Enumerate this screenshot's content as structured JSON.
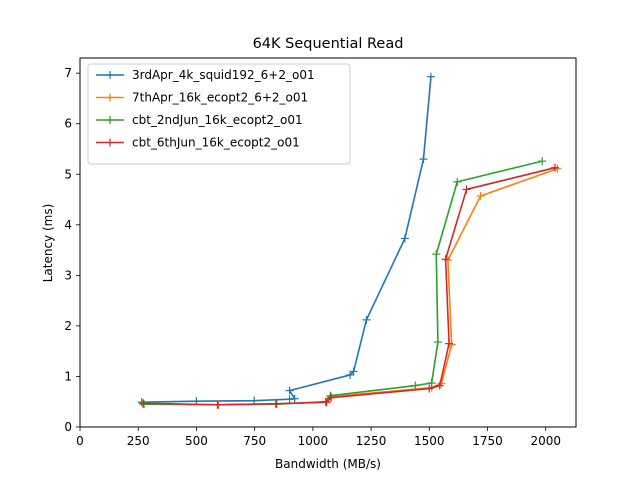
{
  "chart_data": {
    "type": "line",
    "title": "64K  Sequential Read",
    "xlabel": "Bandwidth (MB/s)",
    "ylabel": "Latency (ms)",
    "xlim": [
      0,
      2130
    ],
    "ylim": [
      0,
      7.3
    ],
    "xticks": [
      0,
      250,
      500,
      750,
      1000,
      1250,
      1500,
      1750,
      2000
    ],
    "yticks": [
      0,
      1,
      2,
      3,
      4,
      5,
      6,
      7
    ],
    "grid": false,
    "legend_position": "top-left",
    "series": [
      {
        "name": "3rdApr_4k_squid192_6+2_o01",
        "color": "#1f77b4",
        "points": [
          [
            265,
            0.49
          ],
          [
            500,
            0.51
          ],
          [
            748,
            0.52
          ],
          [
            900,
            0.55
          ],
          [
            922,
            0.56
          ],
          [
            900,
            0.72
          ],
          [
            1160,
            1.03
          ],
          [
            1175,
            1.1
          ],
          [
            1230,
            2.12
          ],
          [
            1395,
            3.73
          ],
          [
            1475,
            5.3
          ],
          [
            1507,
            6.93
          ]
        ]
      },
      {
        "name": "7thApr_16k_ecopt2_6+2_o01",
        "color": "#ff7f0e",
        "points": [
          [
            270,
            0.46
          ],
          [
            595,
            0.44
          ],
          [
            840,
            0.46
          ],
          [
            1060,
            0.49
          ],
          [
            1080,
            0.6
          ],
          [
            1510,
            0.78
          ],
          [
            1552,
            0.86
          ],
          [
            1596,
            1.63
          ],
          [
            1580,
            3.3
          ],
          [
            1720,
            4.57
          ],
          [
            2050,
            5.11
          ]
        ]
      },
      {
        "name": "cbt_2ndJun_16k_ecopt2_o01",
        "color": "#2ca02c",
        "points": [
          [
            275,
            0.45
          ],
          [
            590,
            0.44
          ],
          [
            845,
            0.45
          ],
          [
            1055,
            0.5
          ],
          [
            1075,
            0.62
          ],
          [
            1440,
            0.82
          ],
          [
            1510,
            0.87
          ],
          [
            1537,
            1.68
          ],
          [
            1530,
            3.42
          ],
          [
            1620,
            4.85
          ],
          [
            1985,
            5.26
          ]
        ]
      },
      {
        "name": "cbt_6thJun_16k_ecopt2_o01",
        "color": "#d62728",
        "points": [
          [
            272,
            0.47
          ],
          [
            592,
            0.44
          ],
          [
            842,
            0.46
          ],
          [
            1058,
            0.49
          ],
          [
            1078,
            0.58
          ],
          [
            1500,
            0.76
          ],
          [
            1545,
            0.82
          ],
          [
            1585,
            1.65
          ],
          [
            1570,
            3.32
          ],
          [
            1660,
            4.7
          ],
          [
            2040,
            5.13
          ]
        ]
      }
    ]
  }
}
